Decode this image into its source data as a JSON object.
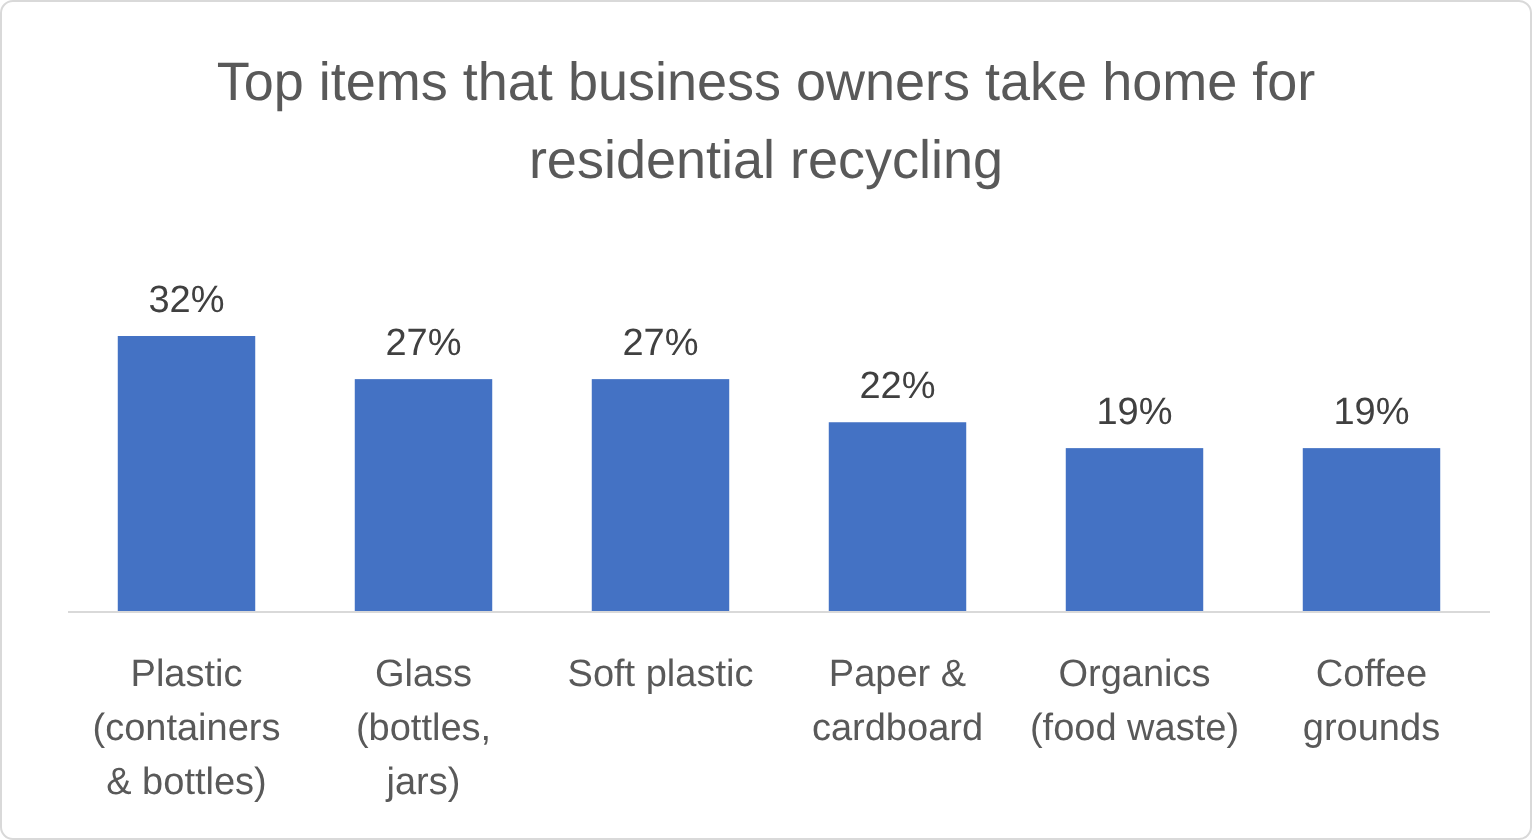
{
  "chart_data": {
    "type": "bar",
    "title": "Top items that business owners take home for residential recycling",
    "categories": [
      "Plastic (containers & bottles)",
      "Glass (bottles, jars)",
      "Soft plastic",
      "Paper & cardboard",
      "Organics (food waste)",
      "Coffee grounds"
    ],
    "values": [
      32,
      27,
      27,
      22,
      19,
      19
    ],
    "value_labels": [
      "32%",
      "27%",
      "27%",
      "22%",
      "19%",
      "19%"
    ],
    "color": "#4472c4"
  }
}
